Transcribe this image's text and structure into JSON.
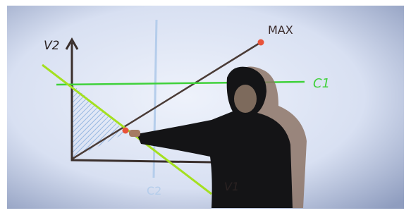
{
  "labels": {
    "y_axis": "V2",
    "max": "MAX",
    "c1": "C1",
    "c2": "C2",
    "x_axis": "V1"
  }
}
